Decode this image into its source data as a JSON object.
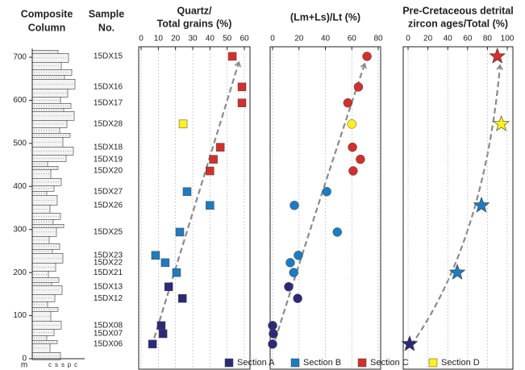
{
  "chart_data": {
    "type": "multi-panel-scatter",
    "column_title": [
      "Composite",
      "Column"
    ],
    "sample_title": [
      "Sample",
      "No."
    ],
    "column_unit": "m",
    "column_scale": [
      "c",
      "s",
      "s",
      "p",
      "c"
    ],
    "ylim": [
      0,
      720
    ],
    "yticks": [
      0,
      100,
      200,
      300,
      400,
      500,
      600,
      700
    ],
    "series": [
      {
        "name": "Section A",
        "color": "#2c2a78",
        "samples": [
          "15DX06",
          "15DX07",
          "15DX08",
          "15DX12",
          "15DX13"
        ],
        "heights": [
          34,
          58,
          77,
          140,
          167
        ]
      },
      {
        "name": "Section B",
        "color": "#1f7bbf",
        "samples": [
          "15DX21",
          "15DX22",
          "15DX23",
          "15DX25",
          "15DX26",
          "15DX27"
        ],
        "heights": [
          200,
          223,
          240,
          294,
          356,
          388
        ]
      },
      {
        "name": "Section C",
        "color": "#d2302c",
        "samples": [
          "15DX20",
          "15DX19",
          "15DX18",
          "15DX17",
          "15DX16",
          "15DX15"
        ],
        "heights": [
          436,
          463,
          491,
          594,
          631,
          702
        ]
      },
      {
        "name": "Section D",
        "color": "#fff01f",
        "samples": [
          "15DX28"
        ],
        "heights": [
          545
        ]
      }
    ],
    "panels": [
      {
        "title": [
          "Quartz/",
          "Total grains (%)"
        ],
        "marker": "square",
        "xlim": [
          0,
          60
        ],
        "xticks": [
          0,
          10,
          20,
          30,
          40,
          50,
          60
        ],
        "series_values": [
          [
            6.6,
            12.7,
            11.7,
            24,
            16
          ],
          [
            20.6,
            14,
            8.4,
            22.5,
            40,
            26.7
          ],
          [
            40,
            42,
            46,
            58.6,
            58.6,
            53
          ],
          [
            24.4
          ]
        ]
      },
      {
        "title": [
          "(Lm+Ls)/Lt (%)"
        ],
        "marker": "circle",
        "xlim": [
          0,
          80
        ],
        "xticks": [
          0,
          20,
          40,
          60,
          80
        ],
        "series_values": [
          [
            0,
            0.6,
            0,
            19,
            12.2
          ],
          [
            16,
            13.4,
            19.5,
            49,
            16.5,
            41
          ],
          [
            61,
            66.5,
            60.5,
            57,
            65,
            71.5
          ],
          [
            60
          ]
        ]
      },
      {
        "title": [
          "Pre-Cretaceous detrital",
          "zircon ages/Total (%)"
        ],
        "marker": "star",
        "xlim": [
          0,
          100
        ],
        "xticks": [
          0,
          20,
          40,
          60,
          80,
          100
        ],
        "series_values": [
          [
            1.6,
            null,
            null,
            null,
            null
          ],
          [
            49.6,
            null,
            null,
            null,
            74,
            null
          ],
          [
            null,
            null,
            null,
            null,
            null,
            90
          ],
          [
            94
          ]
        ]
      }
    ]
  }
}
